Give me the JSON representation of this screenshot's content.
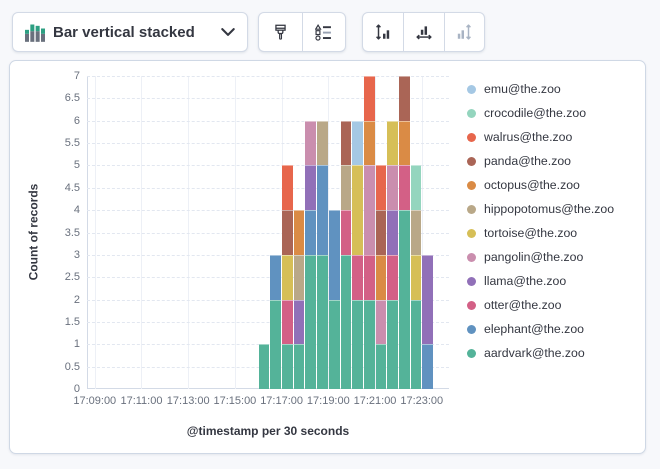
{
  "toolbar": {
    "chart_type_label": "Bar vertical stacked",
    "icons": [
      "bar-vertical-stacked-icon",
      "chevron-down-icon",
      "brush-icon",
      "legend-list-icon",
      "left-axis-icon",
      "bottom-axis-icon",
      "right-axis-icon"
    ],
    "right_axis_disabled": true
  },
  "ui_colors": {
    "panel_border": "#cfd8e5",
    "button_border": "#d3dae6",
    "text": "#343741",
    "subdued_text": "#69707d",
    "grid_line": "#edf0f6",
    "icon_green": "#2d9f82",
    "icon_gray": "#69707d",
    "icon_disabled": "#a9b4c4"
  },
  "chart_data": {
    "type": "bar",
    "stacked": true,
    "orientation": "vertical",
    "title": "",
    "xlabel": "@timestamp per 30 seconds",
    "ylabel": "Count of records",
    "ylim": [
      0,
      7
    ],
    "ytick_step": 0.5,
    "grid": true,
    "legend_position": "right",
    "x_domain": [
      "17:08:40",
      "17:24:10"
    ],
    "bucket_seconds": 30,
    "x_ticks": [
      "17:09:00",
      "17:11:00",
      "17:13:00",
      "17:15:00",
      "17:17:00",
      "17:19:00",
      "17:21:00",
      "17:23:00"
    ],
    "categories": [
      "17:16:00",
      "17:16:30",
      "17:17:00",
      "17:17:30",
      "17:18:00",
      "17:18:30",
      "17:19:00",
      "17:19:30",
      "17:20:00",
      "17:20:30",
      "17:21:00",
      "17:21:30",
      "17:22:00",
      "17:22:30",
      "17:23:00"
    ],
    "series": [
      {
        "name": "aardvark@the.zoo",
        "color": "#54B399",
        "values": [
          1,
          2,
          1,
          1,
          3,
          3,
          2,
          3,
          2,
          2,
          1,
          2,
          4,
          2,
          0
        ]
      },
      {
        "name": "elephant@the.zoo",
        "color": "#6092C0",
        "values": [
          0,
          1,
          0,
          0,
          1,
          2,
          2,
          0,
          0,
          0,
          0,
          0,
          0,
          0,
          1
        ]
      },
      {
        "name": "otter@the.zoo",
        "color": "#D36086",
        "values": [
          0,
          0,
          1,
          0,
          0,
          0,
          0,
          1,
          1,
          1,
          0,
          1,
          1,
          0,
          0
        ]
      },
      {
        "name": "llama@the.zoo",
        "color": "#9170B8",
        "values": [
          0,
          0,
          0,
          1,
          1,
          0,
          0,
          0,
          0,
          0,
          0,
          1,
          0,
          0,
          2
        ]
      },
      {
        "name": "pangolin@the.zoo",
        "color": "#CA8EAE",
        "values": [
          0,
          0,
          0,
          0,
          1,
          0,
          0,
          0,
          0,
          2,
          1,
          1,
          0,
          0,
          0
        ]
      },
      {
        "name": "tortoise@the.zoo",
        "color": "#D6BF57",
        "values": [
          0,
          0,
          1,
          0,
          0,
          0,
          0,
          0,
          2,
          0,
          0,
          1,
          0,
          1,
          0
        ]
      },
      {
        "name": "hippopotomus@the.zoo",
        "color": "#B9A888",
        "values": [
          0,
          0,
          0,
          1,
          0,
          1,
          0,
          1,
          0,
          0,
          0,
          0,
          0,
          1,
          0
        ]
      },
      {
        "name": "octopus@the.zoo",
        "color": "#DA8B45",
        "values": [
          0,
          0,
          0,
          1,
          0,
          0,
          0,
          0,
          0,
          1,
          1,
          0,
          1,
          0,
          0
        ]
      },
      {
        "name": "panda@the.zoo",
        "color": "#AA6556",
        "values": [
          0,
          0,
          1,
          0,
          0,
          0,
          0,
          1,
          0,
          0,
          1,
          0,
          1,
          0,
          0
        ]
      },
      {
        "name": "walrus@the.zoo",
        "color": "#E7664C",
        "values": [
          0,
          0,
          1,
          0,
          0,
          0,
          0,
          0,
          0,
          1,
          1,
          0,
          0,
          0,
          0
        ]
      },
      {
        "name": "crocodile@the.zoo",
        "color": "#94D5BE",
        "values": [
          0,
          0,
          0,
          0,
          0,
          0,
          0,
          0,
          0,
          0,
          0,
          0,
          0,
          1,
          0
        ]
      },
      {
        "name": "emu@the.zoo",
        "color": "#A5C8E4",
        "values": [
          0,
          0,
          0,
          0,
          0,
          0,
          0,
          0,
          1,
          0,
          0,
          0,
          0,
          0,
          0
        ]
      }
    ]
  }
}
